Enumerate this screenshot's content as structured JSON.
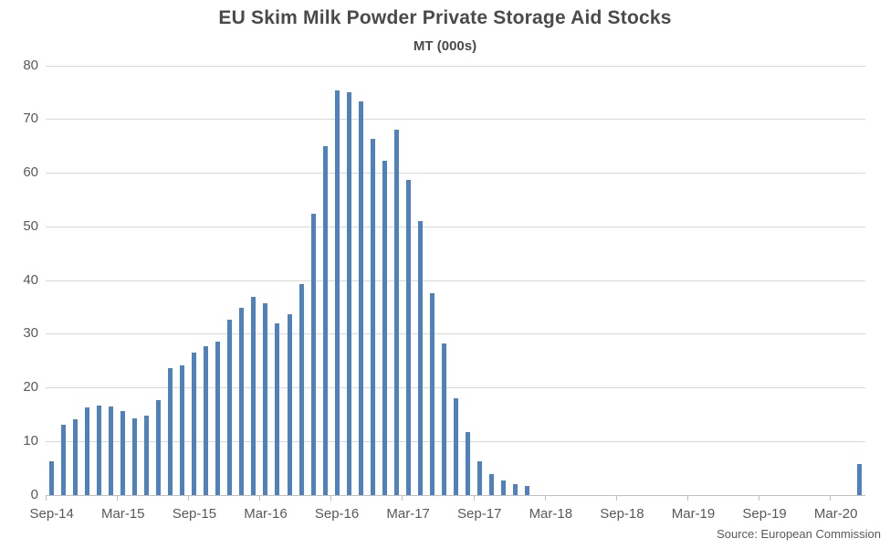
{
  "chart": {
    "title": "EU Skim Milk Powder Private Storage Aid Stocks",
    "subtitle": "MT (000s)",
    "source": "Source: European Commission"
  },
  "chart_data": {
    "type": "bar",
    "title": "EU Skim Milk Powder Private Storage Aid Stocks",
    "subtitle": "MT (000s)",
    "xlabel": "",
    "ylabel": "MT (000s)",
    "ylim": [
      0,
      80
    ],
    "y_ticks": [
      0,
      10,
      20,
      30,
      40,
      50,
      60,
      70,
      80
    ],
    "grid": true,
    "legend": false,
    "x_tick_labels": [
      "Sep-14",
      "Mar-15",
      "Sep-15",
      "Mar-16",
      "Sep-16",
      "Mar-17",
      "Sep-17",
      "Mar-18",
      "Sep-18",
      "Mar-19",
      "Sep-19",
      "Mar-20"
    ],
    "x": [
      "Sep-14",
      "Oct-14",
      "Nov-14",
      "Dec-14",
      "Jan-15",
      "Feb-15",
      "Mar-15",
      "Apr-15",
      "May-15",
      "Jun-15",
      "Jul-15",
      "Aug-15",
      "Sep-15",
      "Oct-15",
      "Nov-15",
      "Dec-15",
      "Jan-16",
      "Feb-16",
      "Mar-16",
      "Apr-16",
      "May-16",
      "Jun-16",
      "Jul-16",
      "Aug-16",
      "Sep-16",
      "Oct-16",
      "Nov-16",
      "Dec-16",
      "Jan-17",
      "Feb-17",
      "Mar-17",
      "Apr-17",
      "May-17",
      "Jun-17",
      "Jul-17",
      "Aug-17",
      "Sep-17",
      "Oct-17",
      "Nov-17",
      "Dec-17",
      "Jan-18",
      "Feb-18",
      "Mar-18",
      "Apr-18",
      "May-18",
      "Jun-18",
      "Jul-18",
      "Aug-18",
      "Sep-18",
      "Oct-18",
      "Nov-18",
      "Dec-18",
      "Jan-19",
      "Feb-19",
      "Mar-19",
      "Apr-19",
      "May-19",
      "Jun-19",
      "Jul-19",
      "Aug-19",
      "Sep-19",
      "Oct-19",
      "Nov-19",
      "Dec-19",
      "Jan-20",
      "Feb-20",
      "Mar-20",
      "Apr-20",
      "May-20"
    ],
    "values": [
      6.3,
      13,
      14,
      16.2,
      16.7,
      16.5,
      15.6,
      14.3,
      14.8,
      17.6,
      23.6,
      24.1,
      26.5,
      27.7,
      28.6,
      32.7,
      34.9,
      36.9,
      35.7,
      32,
      33.6,
      39.3,
      52.4,
      65,
      75.3,
      75,
      73.2,
      66.3,
      62.3,
      68,
      58.6,
      51,
      37.5,
      28.2,
      18,
      11.7,
      6.2,
      3.8,
      2.7,
      2,
      1.7,
      0,
      0,
      0,
      0,
      0,
      0,
      0,
      0,
      0,
      0,
      0,
      0,
      0,
      0,
      0,
      0,
      0,
      0,
      0,
      0,
      0,
      0,
      0,
      0,
      0,
      0,
      0,
      5.7
    ],
    "colors": {
      "bar": "#4F81BD",
      "gridline": "#D9D9D9",
      "axis_line": "#BFBFBF",
      "axis_text": "#595959",
      "title_text": "#4A4A4A",
      "background": "#FFFFFF"
    }
  }
}
